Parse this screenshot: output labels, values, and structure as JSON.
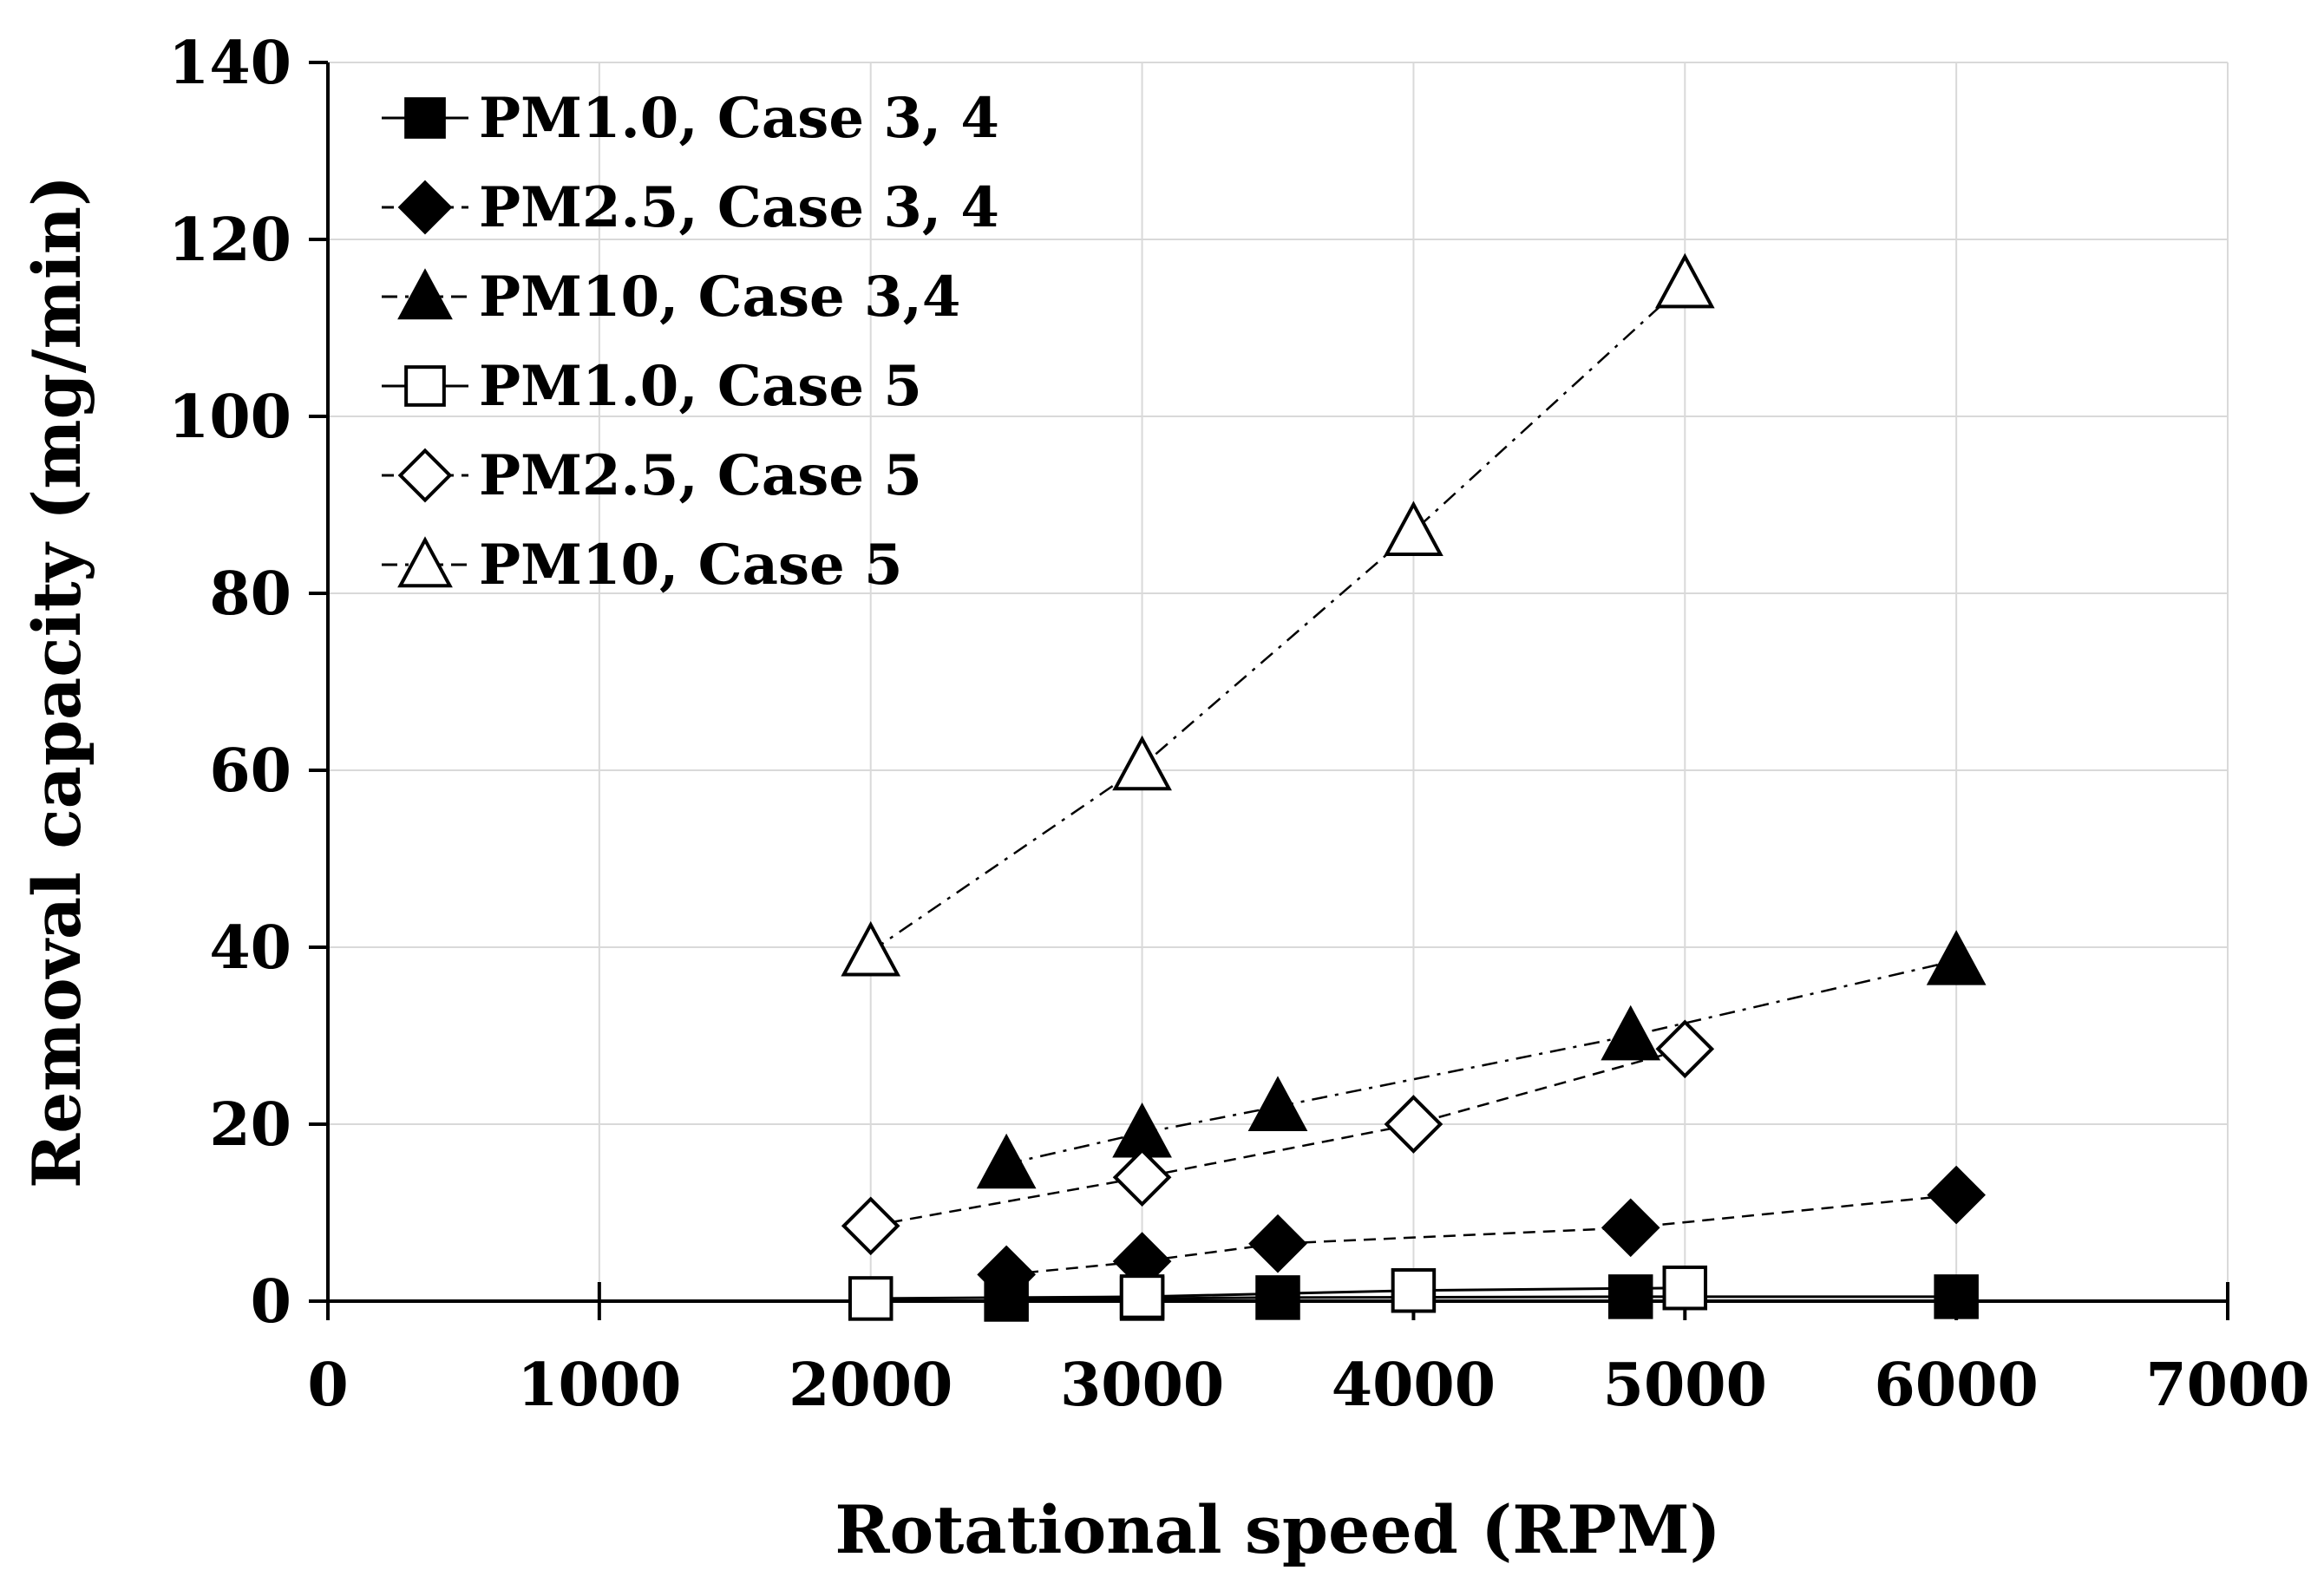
{
  "chart_data": {
    "type": "scatter",
    "title": "",
    "xlabel": "Rotational speed (RPM)",
    "ylabel": "Removal capacity (mg/min)",
    "xlim": [
      0,
      7000
    ],
    "ylim": [
      0,
      140
    ],
    "x_ticks": [
      0,
      1000,
      2000,
      3000,
      4000,
      5000,
      6000,
      7000
    ],
    "y_ticks": [
      0,
      20,
      40,
      60,
      80,
      100,
      120,
      140
    ],
    "x_tick_labels": [
      "0",
      "1000",
      "2000",
      "3000",
      "4000",
      "5000",
      "6000",
      "7000"
    ],
    "y_tick_labels": [
      "0",
      "20",
      "40",
      "60",
      "80",
      "100",
      "120",
      "140"
    ],
    "grid": true,
    "legend_position": "top-left",
    "series": [
      {
        "name": "PM1.0, Case 3, 4",
        "marker": "square",
        "filled": true,
        "line": "solid",
        "x": [
          2500,
          3000,
          3500,
          4800,
          6000
        ],
        "y": [
          0.2,
          0.3,
          0.4,
          0.5,
          0.5
        ]
      },
      {
        "name": "PM2.5, Case 3, 4",
        "marker": "diamond",
        "filled": true,
        "line": "dashed",
        "x": [
          2500,
          3000,
          3500,
          4800,
          6000
        ],
        "y": [
          3.0,
          4.5,
          6.5,
          8.3,
          12.0
        ]
      },
      {
        "name": "PM10, Case 3,4",
        "marker": "triangle",
        "filled": true,
        "line": "dashdot",
        "x": [
          2500,
          3000,
          3500,
          4800,
          6000
        ],
        "y": [
          15.5,
          19.0,
          22.0,
          30.0,
          38.5
        ]
      },
      {
        "name": "PM1.0, Case 5",
        "marker": "square",
        "filled": false,
        "line": "solid",
        "x": [
          2000,
          3000,
          4000,
          5000
        ],
        "y": [
          0.3,
          0.5,
          1.2,
          1.5
        ]
      },
      {
        "name": "PM2.5, Case 5",
        "marker": "diamond",
        "filled": false,
        "line": "dashed",
        "x": [
          2000,
          3000,
          4000,
          5000
        ],
        "y": [
          8.5,
          14.0,
          20.0,
          28.5
        ]
      },
      {
        "name": "PM10, Case 5",
        "marker": "triangle",
        "filled": false,
        "line": "dashdot",
        "x": [
          2000,
          3000,
          4000,
          5000
        ],
        "y": [
          39.5,
          60.5,
          87.0,
          115.0
        ]
      }
    ]
  }
}
